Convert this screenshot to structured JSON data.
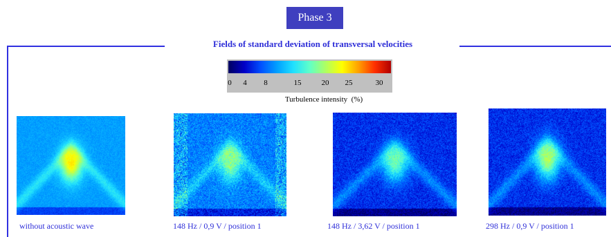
{
  "phase": {
    "label": "Phase 3"
  },
  "section": {
    "heading": "Fields of standard deviation of transversal velocities"
  },
  "colorbar": {
    "ticks": [
      "0",
      "4",
      "8",
      "15",
      "20",
      "25",
      "30"
    ],
    "caption": "Turbulence intensity",
    "unit": "(%)",
    "colors": [
      "#000060",
      "#0000c8",
      "#0050ff",
      "#00a0ff",
      "#20e0ff",
      "#60ffc8",
      "#b0ff60",
      "#ffff00",
      "#ffa000",
      "#ff3000",
      "#b00000"
    ]
  },
  "figures": [
    {
      "caption": "without acoustic wave"
    },
    {
      "caption": "148 Hz / 0,9 V / position 1"
    },
    {
      "caption": "148 Hz / 3,62 V / position 1"
    },
    {
      "caption": "298 Hz / 0,9 V / position 1"
    }
  ]
}
